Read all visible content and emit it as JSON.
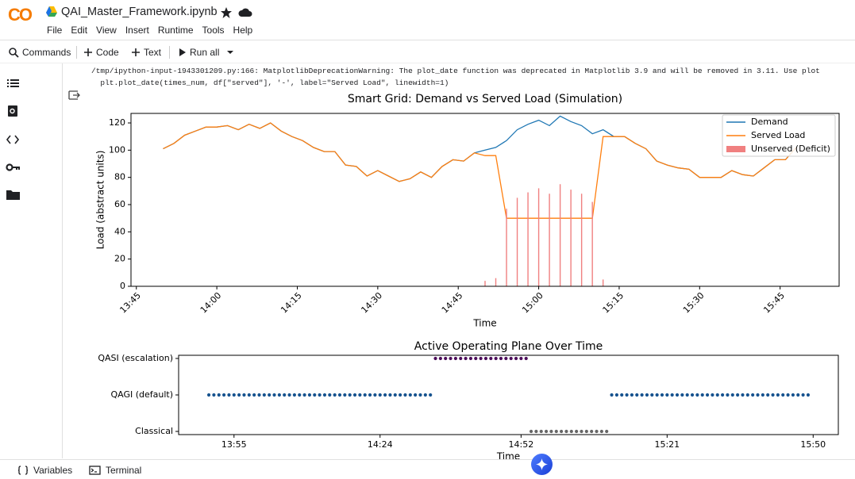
{
  "header": {
    "logo": "CO",
    "title": "QAI_Master_Framework.ipynb",
    "menu": [
      "File",
      "Edit",
      "View",
      "Insert",
      "Runtime",
      "Tools",
      "Help"
    ]
  },
  "toolbar": {
    "items": [
      "Commands",
      "Code",
      "Text",
      "Run all"
    ]
  },
  "output": {
    "lines": [
      "/tmp/ipython-input-1943301209.py:166: MatplotlibDeprecationWarning: The plot_date function was deprecated in Matplotlib 3.9 and will be removed in 3.11. Use plot",
      "  plt.plot_date(times_num, df[\"served\"], '-', label=\"Served Load\", linewidth=1)"
    ]
  },
  "chart_data": [
    {
      "type": "line",
      "title": "Smart Grid: Demand vs Served Load (Simulation)",
      "xlabel": "Time",
      "ylabel": "Load (abstract units)",
      "x": [
        "13:50",
        "13:52",
        "13:54",
        "13:56",
        "13:58",
        "14:00",
        "14:02",
        "14:04",
        "14:06",
        "14:08",
        "14:10",
        "14:12",
        "14:14",
        "14:16",
        "14:18",
        "14:20",
        "14:22",
        "14:24",
        "14:26",
        "14:28",
        "14:30",
        "14:32",
        "14:34",
        "14:36",
        "14:38",
        "14:40",
        "14:42",
        "14:44",
        "14:46",
        "14:48",
        "14:50",
        "14:52",
        "14:54",
        "14:56",
        "14:58",
        "15:00",
        "15:02",
        "15:04",
        "15:06",
        "15:08",
        "15:10",
        "15:12",
        "15:14",
        "15:16",
        "15:18",
        "15:20",
        "15:22",
        "15:24",
        "15:26",
        "15:28",
        "15:30",
        "15:32",
        "15:34",
        "15:36",
        "15:38",
        "15:40",
        "15:42",
        "15:44",
        "15:46",
        "15:48"
      ],
      "series": [
        {
          "name": "Demand",
          "color": "#1f77b4",
          "values": [
            101,
            105,
            111,
            114,
            117,
            117,
            118,
            115,
            119,
            116,
            120,
            114,
            110,
            107,
            102,
            99,
            99,
            89,
            88,
            81,
            85,
            81,
            77,
            79,
            84,
            80,
            88,
            93,
            92,
            98,
            100,
            102,
            107,
            115,
            119,
            122,
            118,
            125,
            121,
            118,
            112,
            115,
            110,
            110,
            105,
            101,
            92,
            89,
            87,
            86,
            80,
            80,
            80,
            85,
            82,
            81,
            87,
            93,
            93,
            102
          ]
        },
        {
          "name": "Served Load",
          "color": "#ff7f0e",
          "values": [
            101,
            105,
            111,
            114,
            117,
            117,
            118,
            115,
            119,
            116,
            120,
            114,
            110,
            107,
            102,
            99,
            99,
            89,
            88,
            81,
            85,
            81,
            77,
            79,
            84,
            80,
            88,
            93,
            92,
            98,
            96,
            96,
            50,
            50,
            50,
            50,
            50,
            50,
            50,
            50,
            50,
            110,
            110,
            110,
            105,
            101,
            92,
            89,
            87,
            86,
            80,
            80,
            80,
            85,
            82,
            81,
            87,
            93,
            93,
            102
          ]
        },
        {
          "name": "Unserved (Deficit)",
          "type": "bar",
          "color": "#f08080",
          "x": [
            "14:50",
            "14:52",
            "14:54",
            "14:56",
            "14:58",
            "15:00",
            "15:02",
            "15:04",
            "15:06",
            "15:08",
            "15:10",
            "15:12"
          ],
          "values": [
            4,
            6,
            57,
            65,
            69,
            72,
            68,
            75,
            71,
            68,
            62,
            5
          ]
        }
      ],
      "xlim": [
        "13:44",
        "15:56"
      ],
      "xticks": [
        "13:45",
        "14:00",
        "14:15",
        "14:30",
        "14:45",
        "15:00",
        "15:15",
        "15:30",
        "15:45"
      ],
      "xtick_rotation": 45,
      "ylim": [
        0,
        127
      ],
      "yticks": [
        0,
        20,
        40,
        60,
        80,
        100,
        120
      ],
      "legend": "upper right"
    },
    {
      "type": "scatter",
      "title": "Active Operating Plane Over Time",
      "xlabel": "Time",
      "ycategories": [
        "Classical",
        "QAGI (default)",
        "QASI (escalation)"
      ],
      "series": [
        {
          "y": "QAGI (default)",
          "color": "#17538f",
          "x": [
            "13:50",
            "13:51",
            "13:52",
            "13:53",
            "13:54",
            "13:55",
            "13:56",
            "13:57",
            "13:58",
            "13:59",
            "14:00",
            "14:01",
            "14:02",
            "14:03",
            "14:04",
            "14:05",
            "14:06",
            "14:07",
            "14:08",
            "14:09",
            "14:10",
            "14:11",
            "14:12",
            "14:13",
            "14:14",
            "14:15",
            "14:16",
            "14:17",
            "14:18",
            "14:19",
            "14:20",
            "14:21",
            "14:22",
            "14:23",
            "14:24",
            "14:25",
            "14:26",
            "14:27",
            "14:28",
            "14:29",
            "14:30",
            "14:31",
            "14:32",
            "14:33",
            "14:34",
            "15:10",
            "15:11",
            "15:12",
            "15:13",
            "15:14",
            "15:15",
            "15:16",
            "15:17",
            "15:18",
            "15:19",
            "15:20",
            "15:21",
            "15:22",
            "15:23",
            "15:24",
            "15:25",
            "15:26",
            "15:27",
            "15:28",
            "15:29",
            "15:30",
            "15:31",
            "15:32",
            "15:33",
            "15:34",
            "15:35",
            "15:36",
            "15:37",
            "15:38",
            "15:39",
            "15:40",
            "15:41",
            "15:42",
            "15:43",
            "15:44",
            "15:45",
            "15:46",
            "15:47",
            "15:48",
            "15:49"
          ]
        },
        {
          "y": "QASI (escalation)",
          "color": "#4b0c59",
          "x": [
            "14:35",
            "14:36",
            "14:37",
            "14:38",
            "14:39",
            "14:40",
            "14:41",
            "14:42",
            "14:43",
            "14:44",
            "14:45",
            "14:46",
            "14:47",
            "14:48",
            "14:49",
            "14:50",
            "14:51",
            "14:52",
            "14:53"
          ]
        },
        {
          "y": "Classical",
          "color": "#666666",
          "x": [
            "14:54",
            "14:55",
            "14:56",
            "14:57",
            "14:58",
            "14:59",
            "15:00",
            "15:01",
            "15:02",
            "15:03",
            "15:04",
            "15:05",
            "15:06",
            "15:07",
            "15:08",
            "15:09"
          ]
        }
      ],
      "xlim": [
        "13:44",
        "15:55"
      ],
      "xticks": [
        "13:55",
        "14:24",
        "14:52",
        "15:21",
        "15:50"
      ]
    }
  ],
  "footer": {
    "items": [
      "Variables",
      "Terminal"
    ]
  }
}
